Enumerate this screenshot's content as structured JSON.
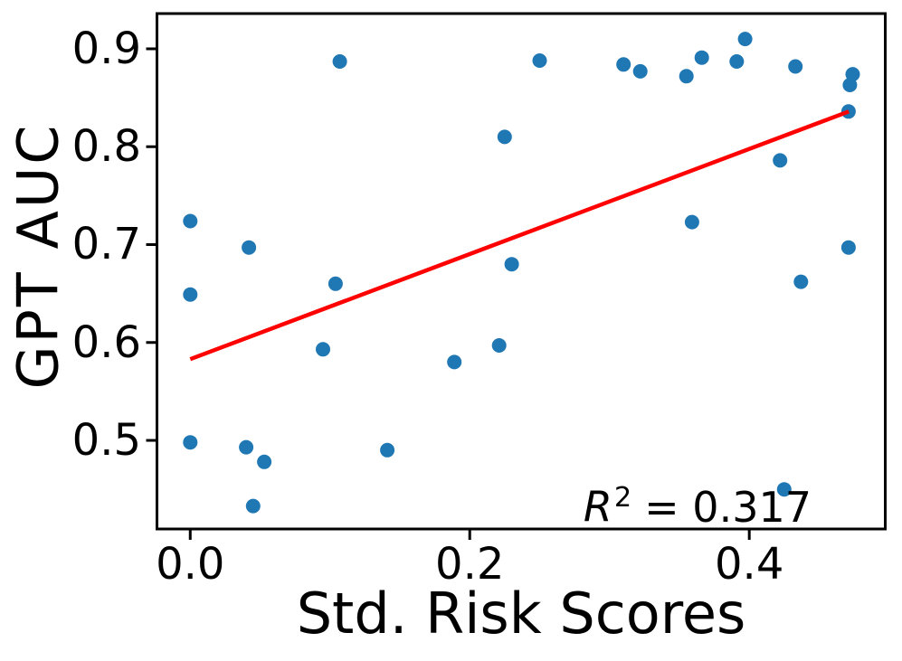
{
  "chart_data": {
    "type": "scatter",
    "xlabel": "Std. Risk Scores",
    "ylabel": "GPT AUC",
    "xlim": [
      -0.0238,
      0.4973
    ],
    "ylim": [
      0.4095,
      0.936
    ],
    "grid": false,
    "legend": "none",
    "x_ticks": {
      "values": [
        0.0,
        0.2,
        0.4
      ],
      "labels": [
        "0.0",
        "0.2",
        "0.4"
      ]
    },
    "y_ticks": {
      "values": [
        0.5,
        0.6,
        0.7,
        0.8,
        0.9
      ],
      "labels": [
        "0.5",
        "0.6",
        "0.7",
        "0.8",
        "0.9"
      ]
    },
    "point_color": "#1f77b4",
    "trend_color": "#ff0000",
    "axis_color": "#000000",
    "points": [
      [
        0.0,
        0.724
      ],
      [
        0.0,
        0.649
      ],
      [
        0.0,
        0.498
      ],
      [
        0.04,
        0.493
      ],
      [
        0.042,
        0.697
      ],
      [
        0.045,
        0.433
      ],
      [
        0.053,
        0.478
      ],
      [
        0.095,
        0.593
      ],
      [
        0.104,
        0.66
      ],
      [
        0.107,
        0.887
      ],
      [
        0.141,
        0.49
      ],
      [
        0.189,
        0.58
      ],
      [
        0.221,
        0.597
      ],
      [
        0.225,
        0.81
      ],
      [
        0.23,
        0.68
      ],
      [
        0.25,
        0.888
      ],
      [
        0.31,
        0.884
      ],
      [
        0.322,
        0.877
      ],
      [
        0.355,
        0.872
      ],
      [
        0.359,
        0.723
      ],
      [
        0.366,
        0.891
      ],
      [
        0.391,
        0.887
      ],
      [
        0.397,
        0.91
      ],
      [
        0.422,
        0.786
      ],
      [
        0.425,
        0.45
      ],
      [
        0.433,
        0.882
      ],
      [
        0.437,
        0.662
      ],
      [
        0.471,
        0.836
      ],
      [
        0.471,
        0.697
      ],
      [
        0.472,
        0.863
      ],
      [
        0.474,
        0.874
      ]
    ],
    "trend_line": {
      "x": [
        0.0,
        0.4712
      ],
      "y": [
        0.583,
        0.836
      ]
    },
    "annotation": {
      "symbol": "R",
      "exponent": "2",
      "value": "= 0.317"
    }
  }
}
